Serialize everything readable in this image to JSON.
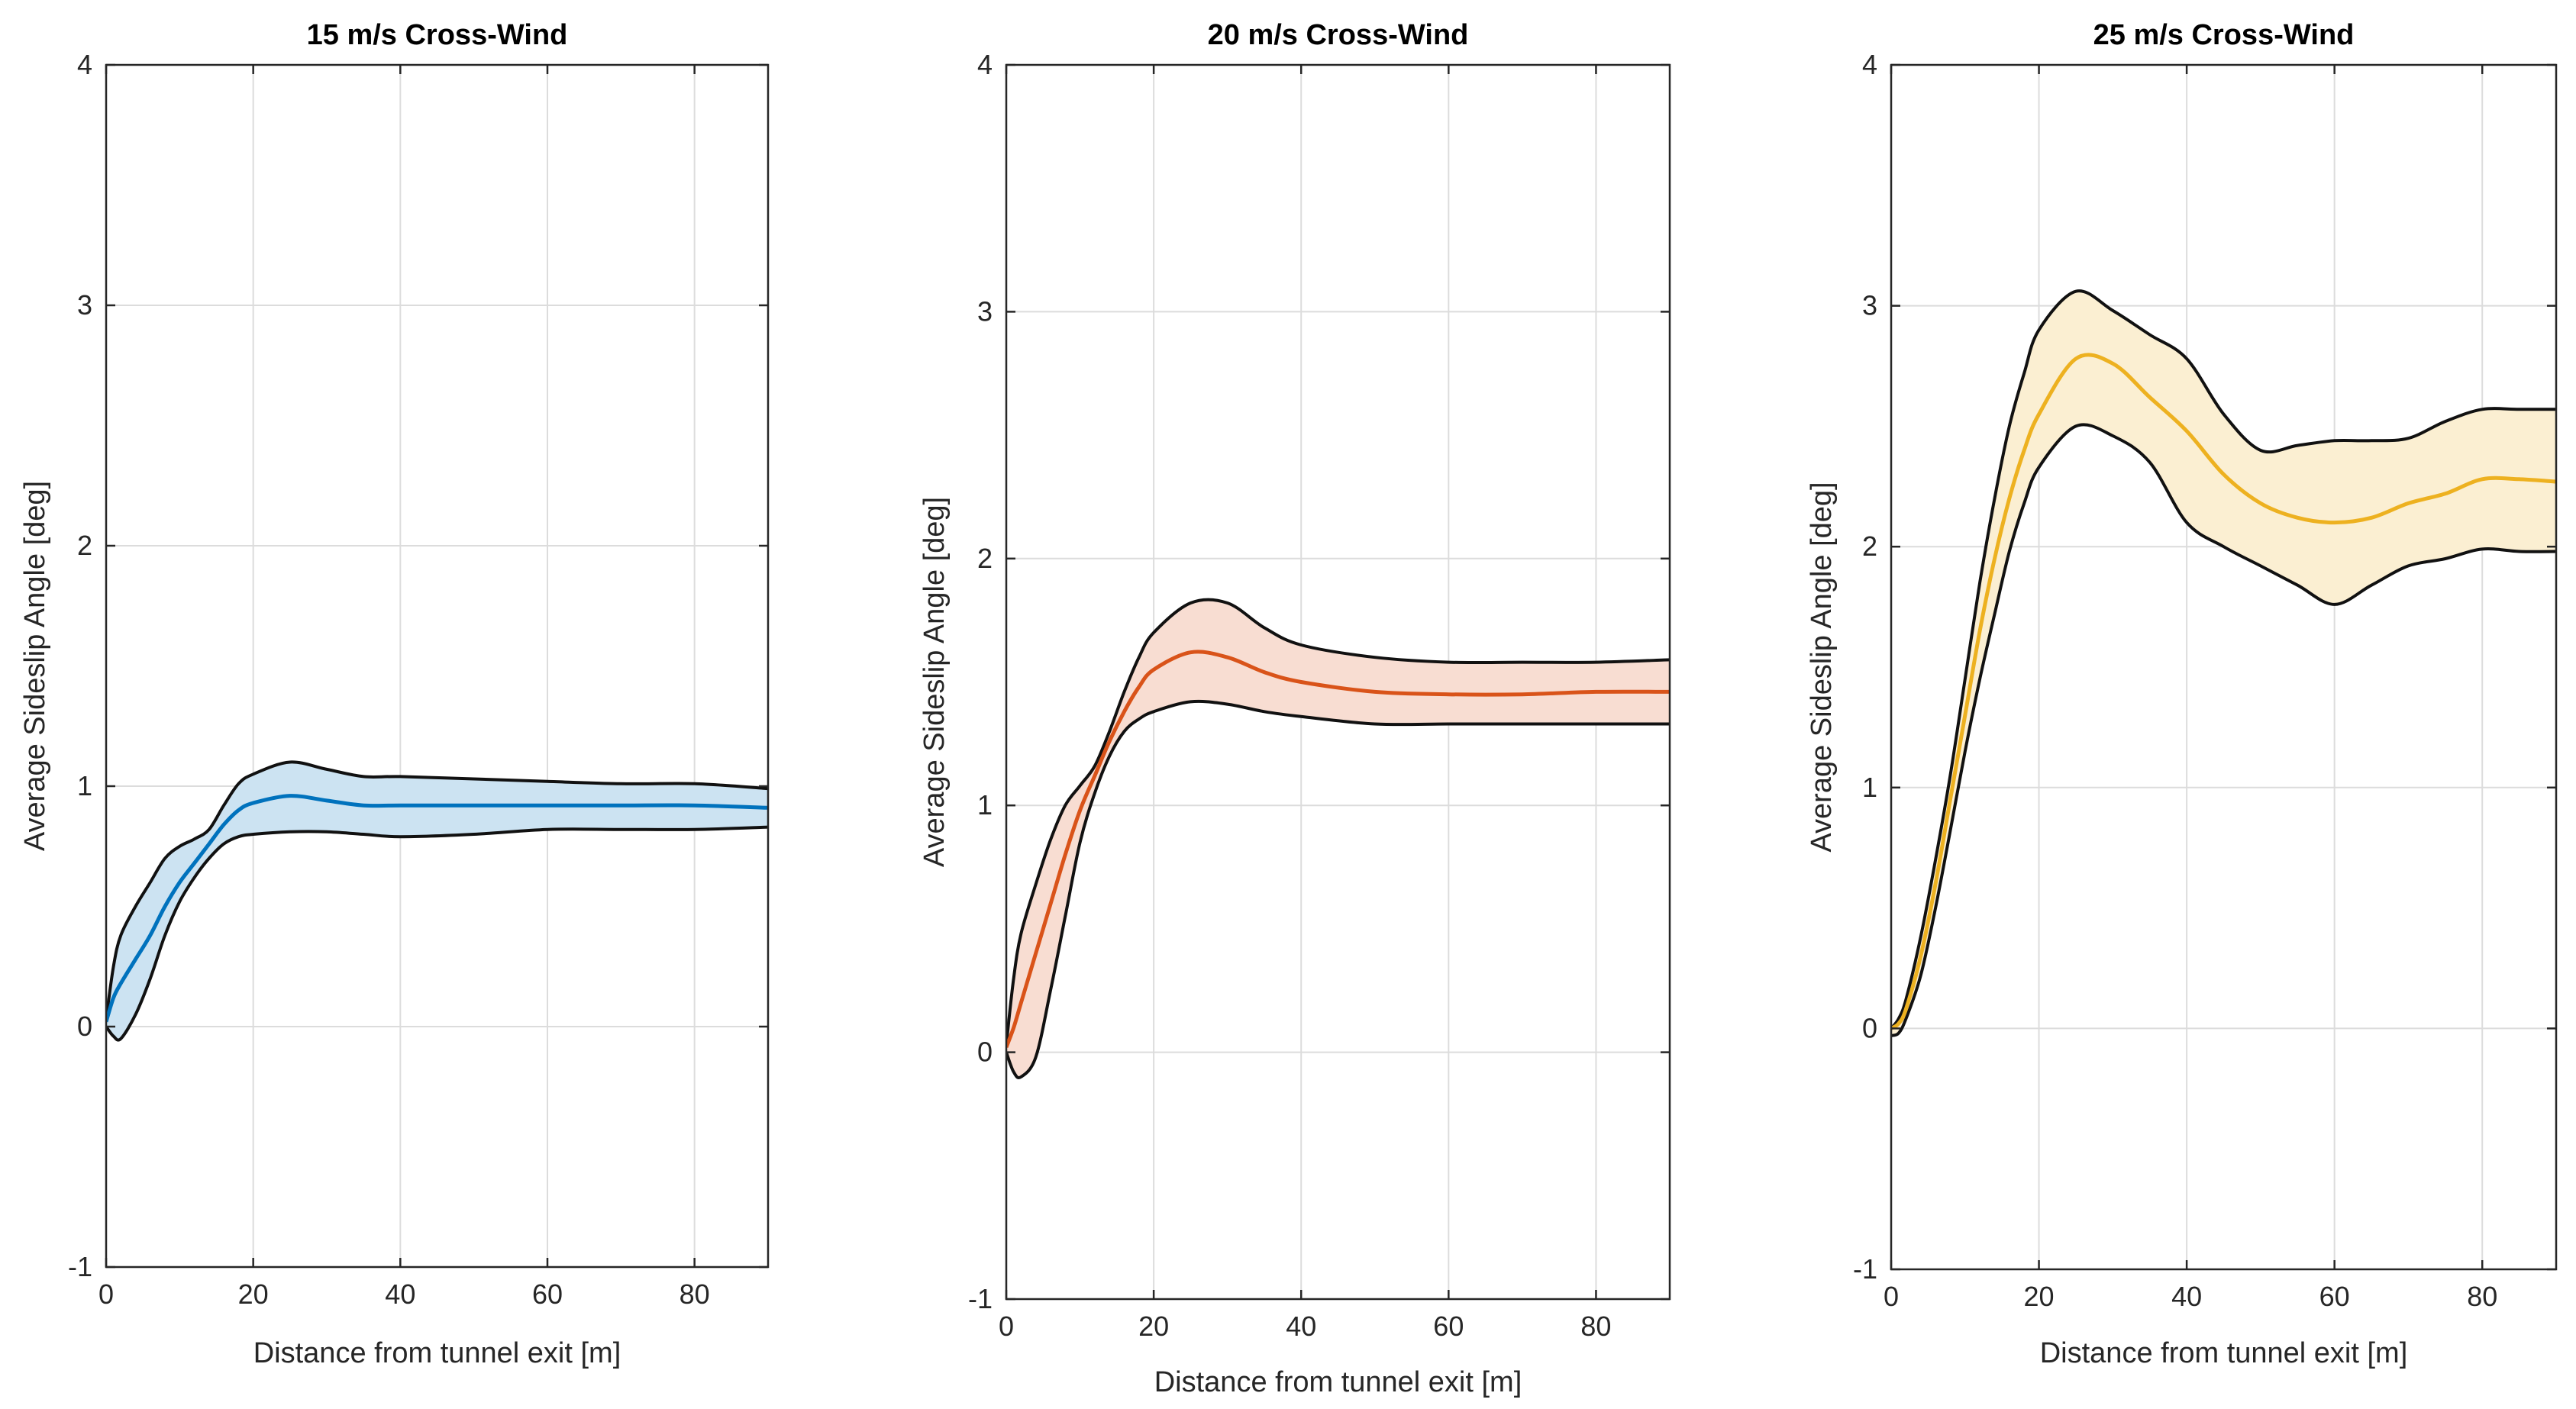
{
  "chart_data": [
    {
      "type": "line",
      "title": "15 m/s Cross-Wind",
      "xlabel": "Distance from tunnel exit [m]",
      "ylabel": "Average Sideslip Angle [deg]",
      "xlim": [
        0,
        90
      ],
      "ylim": [
        -1,
        4
      ],
      "xticks": [
        0,
        20,
        40,
        60,
        80
      ],
      "yticks": [
        -1,
        0,
        1,
        2,
        3,
        4
      ],
      "grid": true,
      "mean_color": "#0072BD",
      "fill_color": "#CCE3F2",
      "x": [
        0,
        1,
        2,
        4,
        6,
        8,
        10,
        12,
        14,
        16,
        18,
        20,
        25,
        30,
        35,
        40,
        50,
        60,
        70,
        80,
        90
      ],
      "series": [
        {
          "name": "mean",
          "values": [
            0.02,
            0.12,
            0.18,
            0.28,
            0.38,
            0.5,
            0.6,
            0.68,
            0.76,
            0.84,
            0.9,
            0.93,
            0.96,
            0.94,
            0.92,
            0.92,
            0.92,
            0.92,
            0.92,
            0.92,
            0.91
          ]
        },
        {
          "name": "upper",
          "values": [
            0.03,
            0.25,
            0.38,
            0.5,
            0.6,
            0.7,
            0.75,
            0.78,
            0.82,
            0.92,
            1.01,
            1.05,
            1.1,
            1.07,
            1.04,
            1.04,
            1.03,
            1.02,
            1.01,
            1.01,
            0.99
          ]
        },
        {
          "name": "lower",
          "values": [
            0.0,
            -0.04,
            -0.05,
            0.05,
            0.2,
            0.38,
            0.52,
            0.62,
            0.7,
            0.76,
            0.79,
            0.8,
            0.81,
            0.81,
            0.8,
            0.79,
            0.8,
            0.82,
            0.82,
            0.82,
            0.83
          ]
        }
      ]
    },
    {
      "type": "line",
      "title": "20 m/s Cross-Wind",
      "xlabel": "Distance from tunnel exit [m]",
      "ylabel": "Average Sideslip Angle [deg]",
      "xlim": [
        0,
        90
      ],
      "ylim": [
        -1,
        4
      ],
      "xticks": [
        0,
        20,
        40,
        60,
        80
      ],
      "yticks": [
        -1,
        0,
        1,
        2,
        3,
        4
      ],
      "grid": true,
      "mean_color": "#D95319",
      "fill_color": "#F8DDD2",
      "x": [
        0,
        1,
        2,
        4,
        6,
        8,
        10,
        12,
        14,
        16,
        18,
        20,
        25,
        30,
        35,
        40,
        50,
        60,
        70,
        80,
        90
      ],
      "series": [
        {
          "name": "mean",
          "values": [
            0.02,
            0.1,
            0.2,
            0.4,
            0.6,
            0.8,
            0.98,
            1.12,
            1.26,
            1.38,
            1.48,
            1.55,
            1.62,
            1.6,
            1.54,
            1.5,
            1.46,
            1.45,
            1.45,
            1.46,
            1.46
          ]
        },
        {
          "name": "upper",
          "values": [
            0.03,
            0.3,
            0.48,
            0.68,
            0.86,
            1.0,
            1.08,
            1.16,
            1.3,
            1.46,
            1.6,
            1.7,
            1.82,
            1.82,
            1.72,
            1.65,
            1.6,
            1.58,
            1.58,
            1.58,
            1.59
          ]
        },
        {
          "name": "lower",
          "values": [
            0.0,
            -0.08,
            -0.1,
            -0.02,
            0.25,
            0.55,
            0.85,
            1.05,
            1.2,
            1.3,
            1.35,
            1.38,
            1.42,
            1.41,
            1.38,
            1.36,
            1.33,
            1.33,
            1.33,
            1.33,
            1.33
          ]
        }
      ]
    },
    {
      "type": "line",
      "title": "25 m/s Cross-Wind",
      "xlabel": "Distance from tunnel exit [m]",
      "ylabel": "Average Sideslip Angle [deg]",
      "xlim": [
        0,
        90
      ],
      "ylim": [
        -1,
        4
      ],
      "xticks": [
        0,
        20,
        40,
        60,
        80
      ],
      "yticks": [
        -1,
        0,
        1,
        2,
        3,
        4
      ],
      "grid": true,
      "mean_color": "#EDB120",
      "fill_color": "#FBEFD2",
      "x": [
        0,
        1,
        2,
        4,
        6,
        8,
        10,
        12,
        14,
        16,
        18,
        20,
        25,
        30,
        35,
        40,
        45,
        50,
        55,
        60,
        65,
        70,
        75,
        80,
        85,
        90
      ],
      "series": [
        {
          "name": "mean",
          "values": [
            0.0,
            0.02,
            0.08,
            0.3,
            0.6,
            0.95,
            1.3,
            1.65,
            1.95,
            2.2,
            2.4,
            2.55,
            2.78,
            2.76,
            2.62,
            2.48,
            2.3,
            2.18,
            2.12,
            2.1,
            2.12,
            2.18,
            2.22,
            2.28,
            2.28,
            2.27
          ]
        },
        {
          "name": "upper",
          "values": [
            0.0,
            0.04,
            0.12,
            0.38,
            0.7,
            1.05,
            1.45,
            1.85,
            2.2,
            2.5,
            2.72,
            2.9,
            3.06,
            2.98,
            2.88,
            2.78,
            2.55,
            2.4,
            2.42,
            2.44,
            2.44,
            2.45,
            2.52,
            2.57,
            2.57,
            2.57
          ]
        },
        {
          "name": "lower",
          "values": [
            -0.03,
            -0.02,
            0.04,
            0.22,
            0.5,
            0.82,
            1.15,
            1.45,
            1.72,
            1.98,
            2.18,
            2.33,
            2.5,
            2.46,
            2.35,
            2.1,
            2.0,
            1.92,
            1.84,
            1.76,
            1.84,
            1.92,
            1.95,
            1.99,
            1.98,
            1.98
          ]
        }
      ]
    }
  ]
}
